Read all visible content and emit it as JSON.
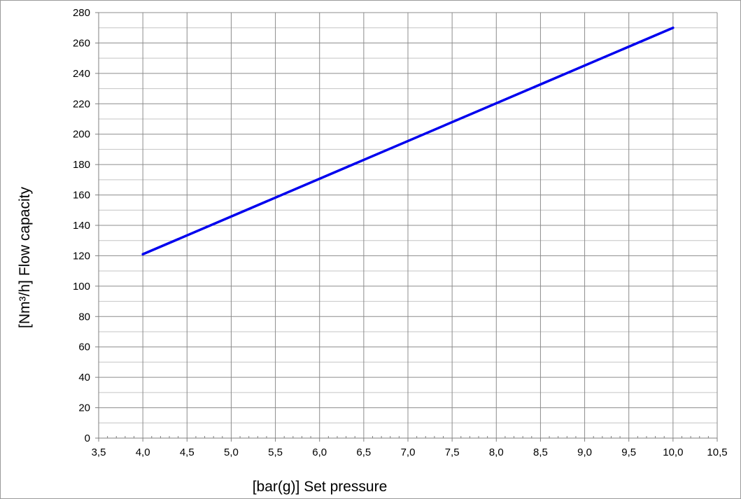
{
  "chart_data": {
    "type": "line",
    "title": "",
    "xlabel": "[bar(g)]  Set pressure",
    "ylabel": "[Nm³/h]  Flow capacity",
    "xlim": [
      3.5,
      10.5
    ],
    "ylim": [
      0,
      280
    ],
    "x_ticks": [
      3.5,
      4.0,
      4.5,
      5.0,
      5.5,
      6.0,
      6.5,
      7.0,
      7.5,
      8.0,
      8.5,
      9.0,
      9.5,
      10.0,
      10.5
    ],
    "x_tick_labels": [
      "3,5",
      "4,0",
      "4,5",
      "5,0",
      "5,5",
      "6,0",
      "6,5",
      "7,0",
      "7,5",
      "8,0",
      "8,5",
      "9,0",
      "9,5",
      "10,0",
      "10,5"
    ],
    "y_ticks": [
      0,
      20,
      40,
      60,
      80,
      100,
      120,
      140,
      160,
      180,
      200,
      220,
      240,
      260,
      280
    ],
    "y_tick_labels": [
      "0",
      "20",
      "40",
      "60",
      "80",
      "100",
      "120",
      "140",
      "160",
      "180",
      "200",
      "220",
      "240",
      "260",
      "280"
    ],
    "grid": true,
    "series": [
      {
        "color": "#0000ee",
        "x": [
          4.0,
          10.0
        ],
        "y": [
          121,
          270
        ]
      }
    ],
    "colors": {
      "grid": "#8c8c8c",
      "line": "#0000ee",
      "axis": "#808080"
    }
  }
}
